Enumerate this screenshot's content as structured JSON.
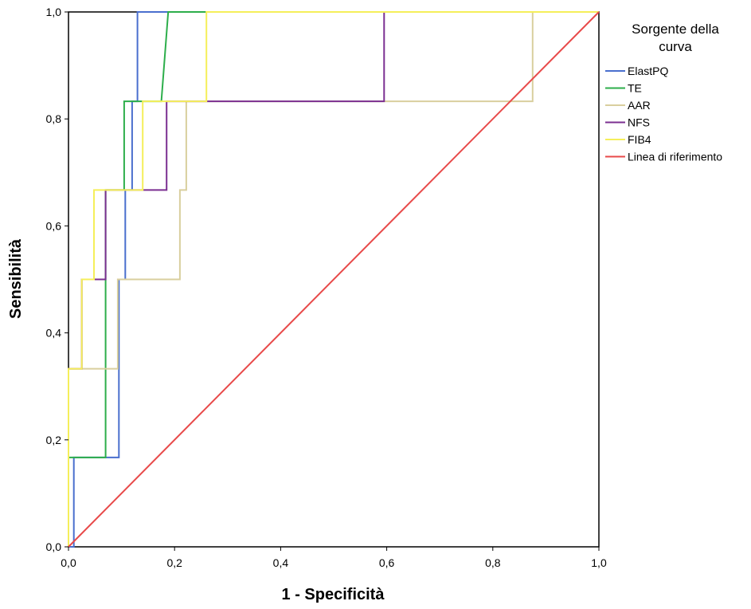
{
  "chart_data": {
    "type": "line",
    "title": "",
    "xlabel": "1 - Specificità",
    "ylabel": "Sensibilità",
    "xlim": [
      0,
      1
    ],
    "ylim": [
      0,
      1
    ],
    "xticks": [
      "0,0",
      "0,2",
      "0,4",
      "0,6",
      "0,8",
      "1,0"
    ],
    "yticks": [
      "0,0",
      "0,2",
      "0,4",
      "0,6",
      "0,8",
      "1,0"
    ],
    "grid": false,
    "legend": {
      "title": "Sorgente della curva",
      "title_lines": [
        "Sorgente della",
        "curva"
      ],
      "placement": "right"
    },
    "series": [
      {
        "name": "ElastPQ",
        "color": "#4a6fce",
        "points": [
          [
            0,
            0
          ],
          [
            0.01,
            0
          ],
          [
            0.01,
            0.167
          ],
          [
            0.095,
            0.167
          ],
          [
            0.095,
            0.333
          ],
          [
            0.095,
            0.5
          ],
          [
            0.107,
            0.5
          ],
          [
            0.107,
            0.667
          ],
          [
            0.12,
            0.667
          ],
          [
            0.12,
            0.833
          ],
          [
            0.13,
            0.833
          ],
          [
            0.13,
            1.0
          ],
          [
            1.0,
            1.0
          ]
        ]
      },
      {
        "name": "TE",
        "color": "#2dae4b",
        "points": [
          [
            0,
            0
          ],
          [
            0,
            0.167
          ],
          [
            0.07,
            0.167
          ],
          [
            0.07,
            0.5
          ],
          [
            0.07,
            0.667
          ],
          [
            0.105,
            0.667
          ],
          [
            0.105,
            0.833
          ],
          [
            0.175,
            0.833
          ],
          [
            0.188,
            1.0
          ],
          [
            1.0,
            1.0
          ]
        ]
      },
      {
        "name": "AAR",
        "color": "#d9cf9e",
        "points": [
          [
            0,
            0
          ],
          [
            0,
            0.333
          ],
          [
            0.093,
            0.333
          ],
          [
            0.093,
            0.5
          ],
          [
            0.21,
            0.5
          ],
          [
            0.21,
            0.667
          ],
          [
            0.222,
            0.667
          ],
          [
            0.222,
            0.833
          ],
          [
            0.875,
            0.833
          ],
          [
            0.875,
            1.0
          ],
          [
            1.0,
            1.0
          ]
        ]
      },
      {
        "name": "NFS",
        "color": "#7b2f91",
        "points": [
          [
            0,
            0
          ],
          [
            0,
            0.167
          ],
          [
            0.0,
            0.333
          ],
          [
            0.025,
            0.333
          ],
          [
            0.025,
            0.5
          ],
          [
            0.05,
            0.5
          ],
          [
            0.05,
            0.5
          ],
          [
            0.07,
            0.5
          ],
          [
            0.07,
            0.667
          ],
          [
            0.185,
            0.667
          ],
          [
            0.185,
            0.833
          ],
          [
            0.595,
            0.833
          ],
          [
            0.595,
            1.0
          ],
          [
            1.0,
            1.0
          ]
        ]
      },
      {
        "name": "FIB4",
        "color": "#f5ef5a",
        "points": [
          [
            0,
            0
          ],
          [
            0,
            0.333
          ],
          [
            0.025,
            0.333
          ],
          [
            0.025,
            0.5
          ],
          [
            0.048,
            0.5
          ],
          [
            0.048,
            0.667
          ],
          [
            0.14,
            0.667
          ],
          [
            0.14,
            0.833
          ],
          [
            0.26,
            0.833
          ],
          [
            0.26,
            1.0
          ],
          [
            1.0,
            1.0
          ]
        ]
      },
      {
        "name": "Linea di riferimento",
        "color": "#e84a4a",
        "points": [
          [
            0,
            0
          ],
          [
            1,
            1
          ]
        ]
      }
    ]
  }
}
